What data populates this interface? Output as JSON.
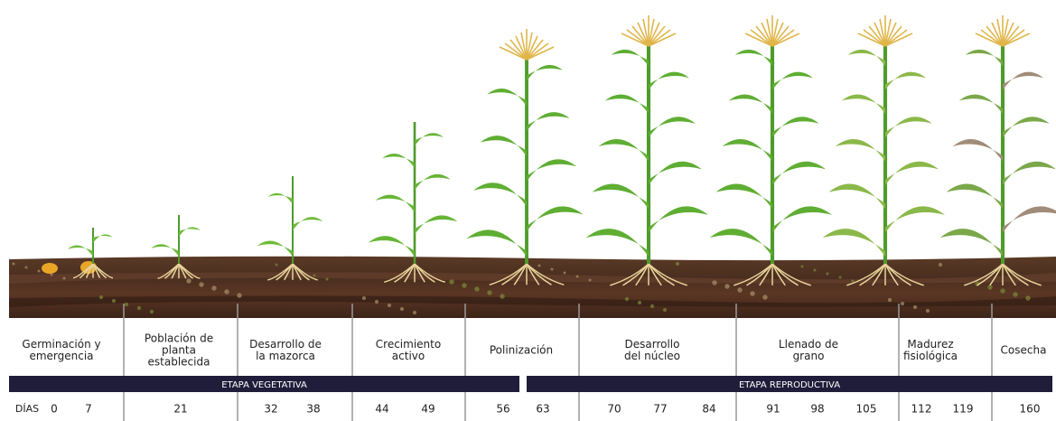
{
  "stages": [
    {
      "label": [
        "Germinación y",
        "emergencia"
      ]
    },
    {
      "label": [
        "Población de",
        "planta",
        "establecida"
      ]
    },
    {
      "label": [
        "Desarrollo de",
        "la mazorca"
      ]
    },
    {
      "label": [
        "Crecimiento",
        "activo"
      ]
    },
    {
      "label": [
        "Polinización"
      ]
    },
    {
      "label": [
        "Desarrollo",
        "del núcleo"
      ]
    },
    {
      "label": [
        "Llenado de",
        "grano"
      ]
    },
    {
      "label": [
        "Madurez",
        "fisiológica"
      ]
    },
    {
      "label": [
        "Cosecha"
      ]
    }
  ],
  "phases": [
    "ETAPA VEGETATIVA",
    "ETAPA REPRODUCTIVA"
  ],
  "days_label": "DÍAS",
  "days": [
    0,
    7,
    21,
    32,
    38,
    44,
    49,
    56,
    63,
    70,
    77,
    84,
    91,
    98,
    105,
    112,
    119,
    160
  ]
}
